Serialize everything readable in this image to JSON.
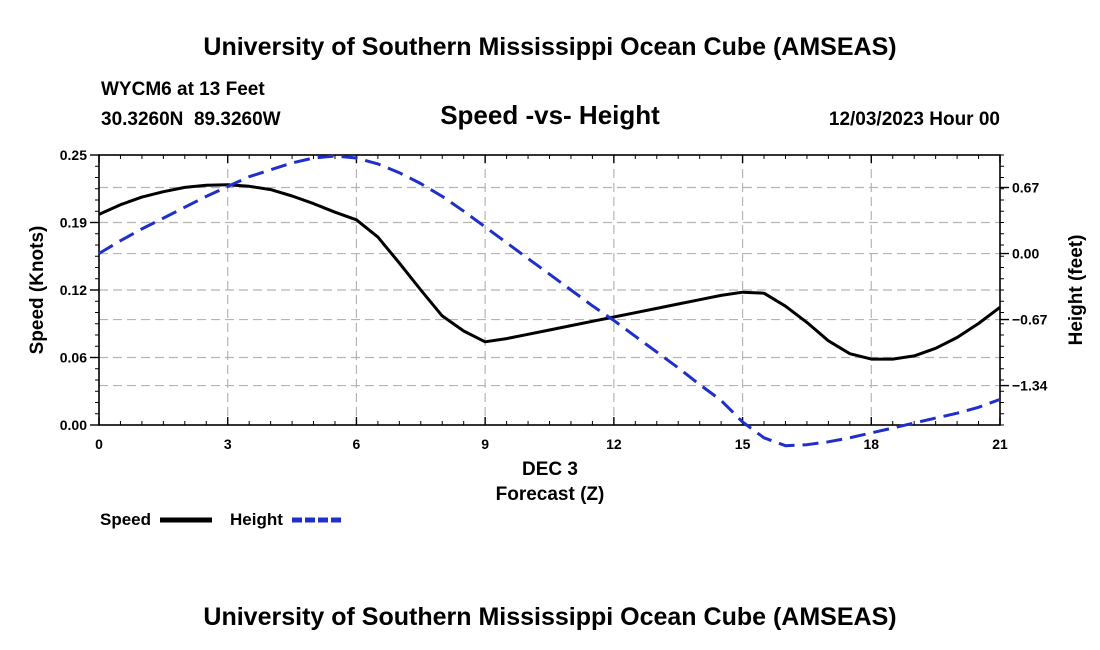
{
  "page": {
    "title": "University of Southern Mississippi Ocean Cube (AMSEAS)",
    "footer_title": "University of Southern Mississippi Ocean Cube (AMSEAS)",
    "station": "WYCM6 at 13 Feet",
    "coords": "30.3260N  89.3260W",
    "chart_title": "Speed -vs- Height",
    "datetime": "12/03/2023 Hour 00"
  },
  "chart_data": {
    "type": "line",
    "title": "Speed -vs- Height",
    "xlabel": "Forecast (Z)",
    "xlabel_date": "DEC 3",
    "ylabel": "Speed (Knots)",
    "y2label": "Height (feet)",
    "xlim": [
      0,
      21
    ],
    "ylim": [
      0,
      0.25
    ],
    "y2lim": [
      -1.74,
      1.0
    ],
    "grid": true,
    "x_ticks": [
      0,
      3,
      6,
      9,
      12,
      15,
      18,
      21
    ],
    "x_tick_labels": [
      "0",
      "3",
      "6",
      "9",
      "12",
      "15",
      "18",
      "21"
    ],
    "y_ticks": [
      0,
      0.0625,
      0.125,
      0.1875,
      0.25
    ],
    "y_tick_labels": [
      "0.00",
      "0.06",
      "0.12",
      "0.19",
      "0.25"
    ],
    "y2_ticks": [
      -1.34,
      -0.67,
      0,
      0.67
    ],
    "y2_tick_labels": [
      "−1.34",
      "−0.67",
      "0.00",
      "0.67"
    ],
    "series": [
      {
        "name": "Speed",
        "axis": "left",
        "color": "#000000",
        "dashed": false,
        "x": [
          0,
          0.5,
          1,
          1.5,
          2,
          2.5,
          3,
          3.5,
          4,
          4.5,
          5,
          5.5,
          6,
          6.5,
          7,
          7.5,
          8,
          8.5,
          9,
          9.5,
          10,
          10.5,
          11,
          11.5,
          12,
          12.5,
          13,
          13.5,
          14,
          14.5,
          15,
          15.5,
          16,
          16.5,
          17,
          17.5,
          18,
          18.5,
          19,
          19.5,
          20,
          20.5,
          21
        ],
        "values": [
          0.195,
          0.204,
          0.211,
          0.216,
          0.22,
          0.222,
          0.2225,
          0.221,
          0.218,
          0.212,
          0.205,
          0.197,
          0.19,
          0.174,
          0.15,
          0.125,
          0.101,
          0.087,
          0.077,
          0.08,
          0.084,
          0.088,
          0.092,
          0.096,
          0.1,
          0.104,
          0.108,
          0.112,
          0.116,
          0.12,
          0.123,
          0.122,
          0.11,
          0.095,
          0.078,
          0.066,
          0.061,
          0.061,
          0.064,
          0.071,
          0.081,
          0.094,
          0.109
        ]
      },
      {
        "name": "Height",
        "axis": "right",
        "color": "#1f2fcc",
        "dashed": true,
        "x": [
          0,
          0.5,
          1,
          1.5,
          2,
          2.5,
          3,
          3.5,
          4,
          4.5,
          5,
          5.5,
          6,
          6.5,
          7,
          7.5,
          8,
          8.5,
          9,
          9.5,
          10,
          10.5,
          11,
          11.5,
          12,
          12.5,
          13,
          13.5,
          14,
          14.5,
          15,
          15.5,
          16,
          16.5,
          17,
          17.5,
          18,
          18.5,
          19,
          19.5,
          20,
          20.5,
          21
        ],
        "values": [
          0.0,
          0.13,
          0.25,
          0.36,
          0.47,
          0.58,
          0.68,
          0.78,
          0.85,
          0.92,
          0.97,
          0.99,
          0.97,
          0.91,
          0.82,
          0.71,
          0.58,
          0.43,
          0.27,
          0.11,
          -0.05,
          -0.21,
          -0.37,
          -0.53,
          -0.68,
          -0.84,
          -1.0,
          -1.16,
          -1.33,
          -1.49,
          -1.71,
          -1.87,
          -1.95,
          -1.94,
          -1.91,
          -1.87,
          -1.82,
          -1.77,
          -1.72,
          -1.67,
          -1.62,
          -1.56,
          -1.48
        ]
      }
    ],
    "legend": [
      {
        "label": "Speed",
        "color": "#000000",
        "dashed": false
      },
      {
        "label": "Height",
        "color": "#1f2fcc",
        "dashed": true
      }
    ]
  }
}
